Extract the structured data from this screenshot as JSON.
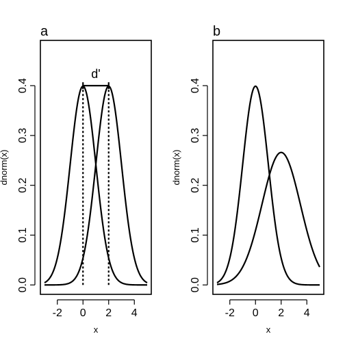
{
  "chart_data": [
    {
      "type": "line",
      "panel_label": "a",
      "xlabel": "x",
      "ylabel": "dnorm(x)",
      "xlim": [
        -3,
        5
      ],
      "ylim": [
        0,
        0.4
      ],
      "x_ticks": [
        -2,
        0,
        2,
        4
      ],
      "x_tick_labels": [
        "-2",
        "0",
        "2",
        "4"
      ],
      "y_ticks": [
        0.0,
        0.1,
        0.2,
        0.3,
        0.4
      ],
      "y_tick_labels": [
        "0.0",
        "0.1",
        "0.2",
        "0.3",
        "0.4"
      ],
      "grid": false,
      "legend": "none",
      "series": [
        {
          "distribution": "normal",
          "mean": 0,
          "sd": 1,
          "x_range": [
            -3,
            5
          ],
          "style": "solid"
        },
        {
          "distribution": "normal",
          "mean": 2,
          "sd": 1,
          "x_range": [
            -3,
            5
          ],
          "style": "solid"
        }
      ],
      "reference_lines": [
        {
          "x": 0,
          "style": "dotted"
        },
        {
          "x": 2,
          "style": "dotted"
        }
      ],
      "annotation": {
        "label": "d'",
        "from_x": 0,
        "to_x": 2,
        "y": 0.4
      }
    },
    {
      "type": "line",
      "panel_label": "b",
      "xlabel": "x",
      "ylabel": "dnorm(x)",
      "xlim": [
        -3,
        5
      ],
      "ylim": [
        0,
        0.4
      ],
      "x_ticks": [
        -2,
        0,
        2,
        4
      ],
      "x_tick_labels": [
        "-2",
        "0",
        "2",
        "4"
      ],
      "y_ticks": [
        0.0,
        0.1,
        0.2,
        0.3,
        0.4
      ],
      "y_tick_labels": [
        "0.0",
        "0.1",
        "0.2",
        "0.3",
        "0.4"
      ],
      "grid": false,
      "legend": "none",
      "series": [
        {
          "distribution": "normal",
          "mean": 0,
          "sd": 1,
          "x_range": [
            -3,
            5
          ],
          "style": "solid"
        },
        {
          "distribution": "normal",
          "mean": 2,
          "sd": 1.5,
          "x_range": [
            -3,
            5
          ],
          "style": "solid"
        }
      ]
    }
  ]
}
